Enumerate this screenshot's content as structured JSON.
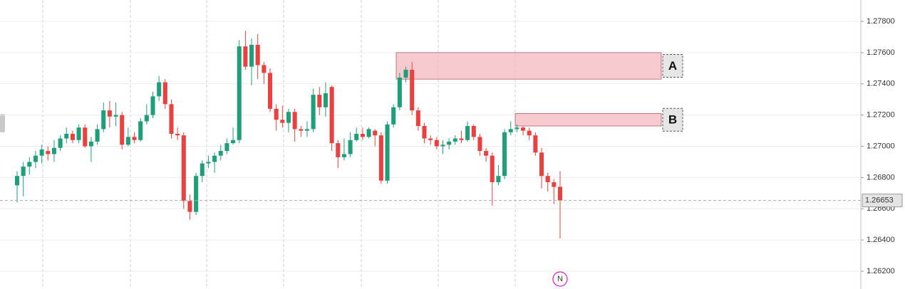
{
  "chart_data": {
    "type": "candlestick",
    "up_color": "#1f9e7a",
    "down_color": "#e8413f",
    "grid": true,
    "ylim": [
      1.26086,
      1.27937
    ],
    "yticks": [
      {
        "value": 1.262,
        "label": "1.26200"
      },
      {
        "value": 1.264,
        "label": "1.26400"
      },
      {
        "value": 1.266,
        "label": "1.26600"
      },
      {
        "value": 1.268,
        "label": "1.26800"
      },
      {
        "value": 1.27,
        "label": "1.27000"
      },
      {
        "value": 1.272,
        "label": "1.27200"
      },
      {
        "value": 1.274,
        "label": "1.27400"
      },
      {
        "value": 1.276,
        "label": "1.27600"
      },
      {
        "value": 1.278,
        "label": "1.27800"
      }
    ],
    "open": [
      1.2675,
      1.2681,
      1.2687,
      1.269,
      1.2694,
      1.2697,
      1.2695,
      1.2699,
      1.2705,
      1.2708,
      1.2704,
      1.2712,
      1.27,
      1.2703,
      1.2711,
      1.2723,
      1.2719,
      1.272,
      1.2701,
      1.2706,
      1.2704,
      1.2716,
      1.272,
      1.2732,
      1.2741,
      1.2727,
      1.2708,
      1.2707,
      1.2665,
      1.2658,
      1.2681,
      1.2689,
      1.269,
      1.2694,
      1.2697,
      1.2702,
      1.2704,
      1.2764,
      1.2751,
      1.2765,
      1.2752,
      1.2747,
      1.2724,
      1.2717,
      1.2715,
      1.2722,
      1.2711,
      1.271,
      1.2711,
      1.2733,
      1.2725,
      1.2738,
      1.2702,
      1.2693,
      1.2695,
      1.2704,
      1.2708,
      1.2706,
      1.271,
      1.2707,
      1.2678,
      1.2714,
      1.2725,
      1.2744,
      1.2749,
      1.2723,
      1.2713,
      1.2705,
      1.2704,
      1.27,
      1.2701,
      1.2703,
      1.2705,
      1.2704,
      1.2713,
      1.2706,
      1.2697,
      1.2694,
      1.2677,
      1.2681,
      1.2709,
      1.2711,
      1.2712,
      1.271,
      1.2707,
      1.2696,
      1.2681,
      1.2677,
      1.2674
    ],
    "high": [
      1.2684,
      1.269,
      1.2693,
      1.2697,
      1.2701,
      1.27,
      1.2704,
      1.2707,
      1.2712,
      1.271,
      1.2714,
      1.2714,
      1.2706,
      1.2714,
      1.2728,
      1.2729,
      1.2728,
      1.2722,
      1.2712,
      1.2709,
      1.2718,
      1.2727,
      1.2735,
      1.2745,
      1.2743,
      1.273,
      1.2712,
      1.2709,
      1.2669,
      1.2683,
      1.2691,
      1.2694,
      1.2696,
      1.2701,
      1.2705,
      1.2712,
      1.2768,
      1.2774,
      1.2769,
      1.2772,
      1.2754,
      1.275,
      1.2727,
      1.2726,
      1.2724,
      1.2724,
      1.2713,
      1.2716,
      1.2737,
      1.2738,
      1.2741,
      1.2739,
      1.2704,
      1.2705,
      1.2709,
      1.2712,
      1.2712,
      1.2712,
      1.2711,
      1.2709,
      1.2716,
      1.2727,
      1.2747,
      1.2751,
      1.2754,
      1.2725,
      1.2715,
      1.2707,
      1.2706,
      1.2704,
      1.2705,
      1.2707,
      1.271,
      1.2716,
      1.2714,
      1.2708,
      1.2699,
      1.2696,
      1.2688,
      1.2711,
      1.2716,
      1.2714,
      1.2713,
      1.2712,
      1.2709,
      1.2699,
      1.2683,
      1.2679,
      1.2684
    ],
    "low": [
      1.2664,
      1.2668,
      1.2682,
      1.2686,
      1.2689,
      1.2691,
      1.269,
      1.2697,
      1.2702,
      1.2702,
      1.2702,
      1.2699,
      1.269,
      1.2701,
      1.2709,
      1.2712,
      1.2713,
      1.2698,
      1.27,
      1.2702,
      1.2703,
      1.2714,
      1.2718,
      1.2729,
      1.2724,
      1.2705,
      1.2704,
      1.266,
      1.2653,
      1.2656,
      1.2677,
      1.2686,
      1.2683,
      1.2691,
      1.2695,
      1.2701,
      1.2702,
      1.2749,
      1.2739,
      1.2743,
      1.274,
      1.2722,
      1.271,
      1.2712,
      1.2709,
      1.2703,
      1.2706,
      1.2706,
      1.2709,
      1.272,
      1.2719,
      1.2697,
      1.2686,
      1.2691,
      1.2693,
      1.2703,
      1.2704,
      1.2705,
      1.27,
      1.2676,
      1.2676,
      1.2712,
      1.2723,
      1.2741,
      1.272,
      1.271,
      1.2702,
      1.2701,
      1.2698,
      1.2695,
      1.2698,
      1.2701,
      1.2702,
      1.2703,
      1.2704,
      1.2694,
      1.269,
      1.2662,
      1.2675,
      1.2679,
      1.2707,
      1.2709,
      1.2707,
      1.2704,
      1.2694,
      1.2673,
      1.2671,
      1.2663,
      1.2641
    ],
    "close": [
      1.2681,
      1.2687,
      1.269,
      1.2694,
      1.2698,
      1.2695,
      1.2699,
      1.2705,
      1.2708,
      1.2704,
      1.2712,
      1.27,
      1.2703,
      1.2711,
      1.2723,
      1.2719,
      1.272,
      1.2701,
      1.2706,
      1.2704,
      1.2716,
      1.272,
      1.2732,
      1.2741,
      1.2727,
      1.2708,
      1.2707,
      1.2665,
      1.2658,
      1.2681,
      1.2689,
      1.269,
      1.2694,
      1.2697,
      1.2702,
      1.2704,
      1.2764,
      1.2751,
      1.2765,
      1.2752,
      1.2747,
      1.2724,
      1.2717,
      1.2715,
      1.2722,
      1.2711,
      1.271,
      1.2711,
      1.2733,
      1.2725,
      1.2734,
      1.2702,
      1.2693,
      1.2695,
      1.2704,
      1.2708,
      1.2706,
      1.2711,
      1.2707,
      1.2678,
      1.2714,
      1.2725,
      1.2744,
      1.2749,
      1.2723,
      1.2713,
      1.2705,
      1.2704,
      1.27,
      1.2701,
      1.2703,
      1.2705,
      1.2704,
      1.2713,
      1.2706,
      1.2697,
      1.2694,
      1.2677,
      1.2681,
      1.2709,
      1.2711,
      1.2712,
      1.271,
      1.2707,
      1.2696,
      1.2681,
      1.2677,
      1.2674,
      1.26653
    ],
    "last_price": {
      "value": 1.26653,
      "label": "1.26653"
    },
    "zones": [
      {
        "label": "A",
        "top": 1.276,
        "bottom": 1.2743,
        "color": "#f4b8bf"
      },
      {
        "label": "B",
        "top": 1.2721,
        "bottom": 1.2713,
        "color": "#f4b8bf"
      }
    ],
    "marker": "N"
  }
}
